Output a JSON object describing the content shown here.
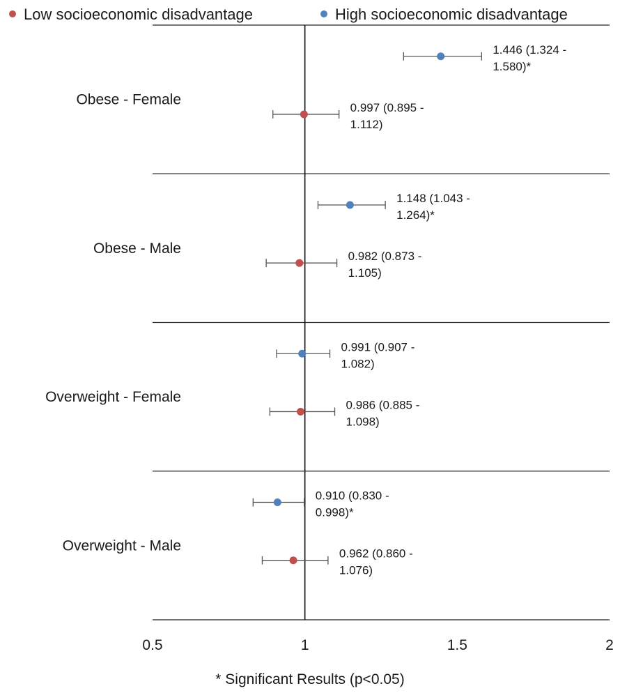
{
  "chart_data": {
    "type": "forest",
    "categories": [
      "Obese - Female",
      "Obese - Male",
      "Overweight - Female",
      "Overweight - Male"
    ],
    "series": [
      {
        "name": "Low socioeconomic disadvantage",
        "color": "#c0504d",
        "points": [
          {
            "category": "Obese - Female",
            "value": 0.997,
            "lower": 0.895,
            "upper": 1.112,
            "label_line1": "0.997 (0.895 -",
            "label_line2": "1.112)"
          },
          {
            "category": "Obese - Male",
            "value": 0.982,
            "lower": 0.873,
            "upper": 1.105,
            "label_line1": "0.982 (0.873 -",
            "label_line2": "1.105)"
          },
          {
            "category": "Overweight - Female",
            "value": 0.986,
            "lower": 0.885,
            "upper": 1.098,
            "label_line1": "0.986 (0.885 -",
            "label_line2": "1.098)"
          },
          {
            "category": "Overweight - Male",
            "value": 0.962,
            "lower": 0.86,
            "upper": 1.076,
            "label_line1": "0.962 (0.860 -",
            "label_line2": "1.076)"
          }
        ]
      },
      {
        "name": "High socioeconomic disadvantage",
        "color": "#4f81bd",
        "points": [
          {
            "category": "Obese - Female",
            "value": 1.446,
            "lower": 1.324,
            "upper": 1.58,
            "label_line1": "1.446 (1.324 -",
            "label_line2": "1.580)*"
          },
          {
            "category": "Obese - Male",
            "value": 1.148,
            "lower": 1.043,
            "upper": 1.264,
            "label_line1": "1.148 (1.043 -",
            "label_line2": "1.264)*"
          },
          {
            "category": "Overweight - Female",
            "value": 0.991,
            "lower": 0.907,
            "upper": 1.082,
            "label_line1": "0.991 (0.907 -",
            "label_line2": "1.082)"
          },
          {
            "category": "Overweight - Male",
            "value": 0.91,
            "lower": 0.83,
            "upper": 0.998,
            "label_line1": "0.910 (0.830 -",
            "label_line2": "0.998)*"
          }
        ]
      }
    ],
    "xlim": [
      0.5,
      2
    ],
    "x_ticks": [
      0.5,
      1,
      1.5,
      2
    ],
    "x_tick_labels": [
      "0.5",
      "1",
      "1.5",
      "2"
    ],
    "reference_line": 1,
    "legend_placement": "top",
    "footnote": "* Significant Results (p<0.05)",
    "grid": false
  }
}
